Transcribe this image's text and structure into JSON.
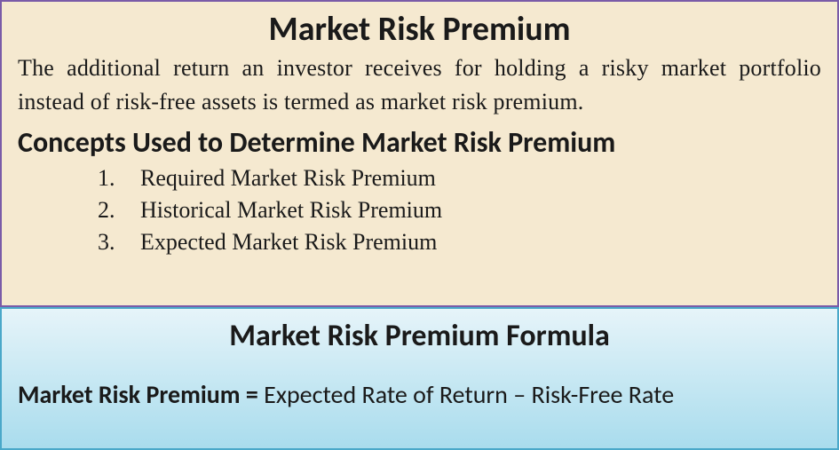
{
  "colors": {
    "top_bg": "#f5e9d0",
    "top_border": "#7a5ba8",
    "bottom_gradient_start": "#e6f4f9",
    "bottom_gradient_end": "#a9dced",
    "bottom_border": "#4aa8c9",
    "text": "#1a1a1a"
  },
  "top": {
    "title": "Market Risk Premium",
    "definition": "The additional return an investor receives for holding a risky market portfolio instead of risk-free assets is termed as market risk premium.",
    "section_heading": "Concepts Used to Determine Market Risk Premium",
    "concepts": [
      {
        "num": "1.",
        "text": "Required Market Risk Premium"
      },
      {
        "num": "2.",
        "text": "Historical Market Risk Premium"
      },
      {
        "num": "3.",
        "text": "Expected Market Risk Premium"
      }
    ]
  },
  "bottom": {
    "title": "Market Risk Premium Formula",
    "formula_label": "Market Risk Premium = ",
    "formula_expr": "Expected Rate of Return – Risk-Free Rate"
  },
  "typography": {
    "title_fontsize": 38,
    "definition_fontsize": 26,
    "section_fontsize": 32,
    "list_fontsize": 26,
    "formula_title_fontsize": 34,
    "formula_fontsize": 28
  }
}
